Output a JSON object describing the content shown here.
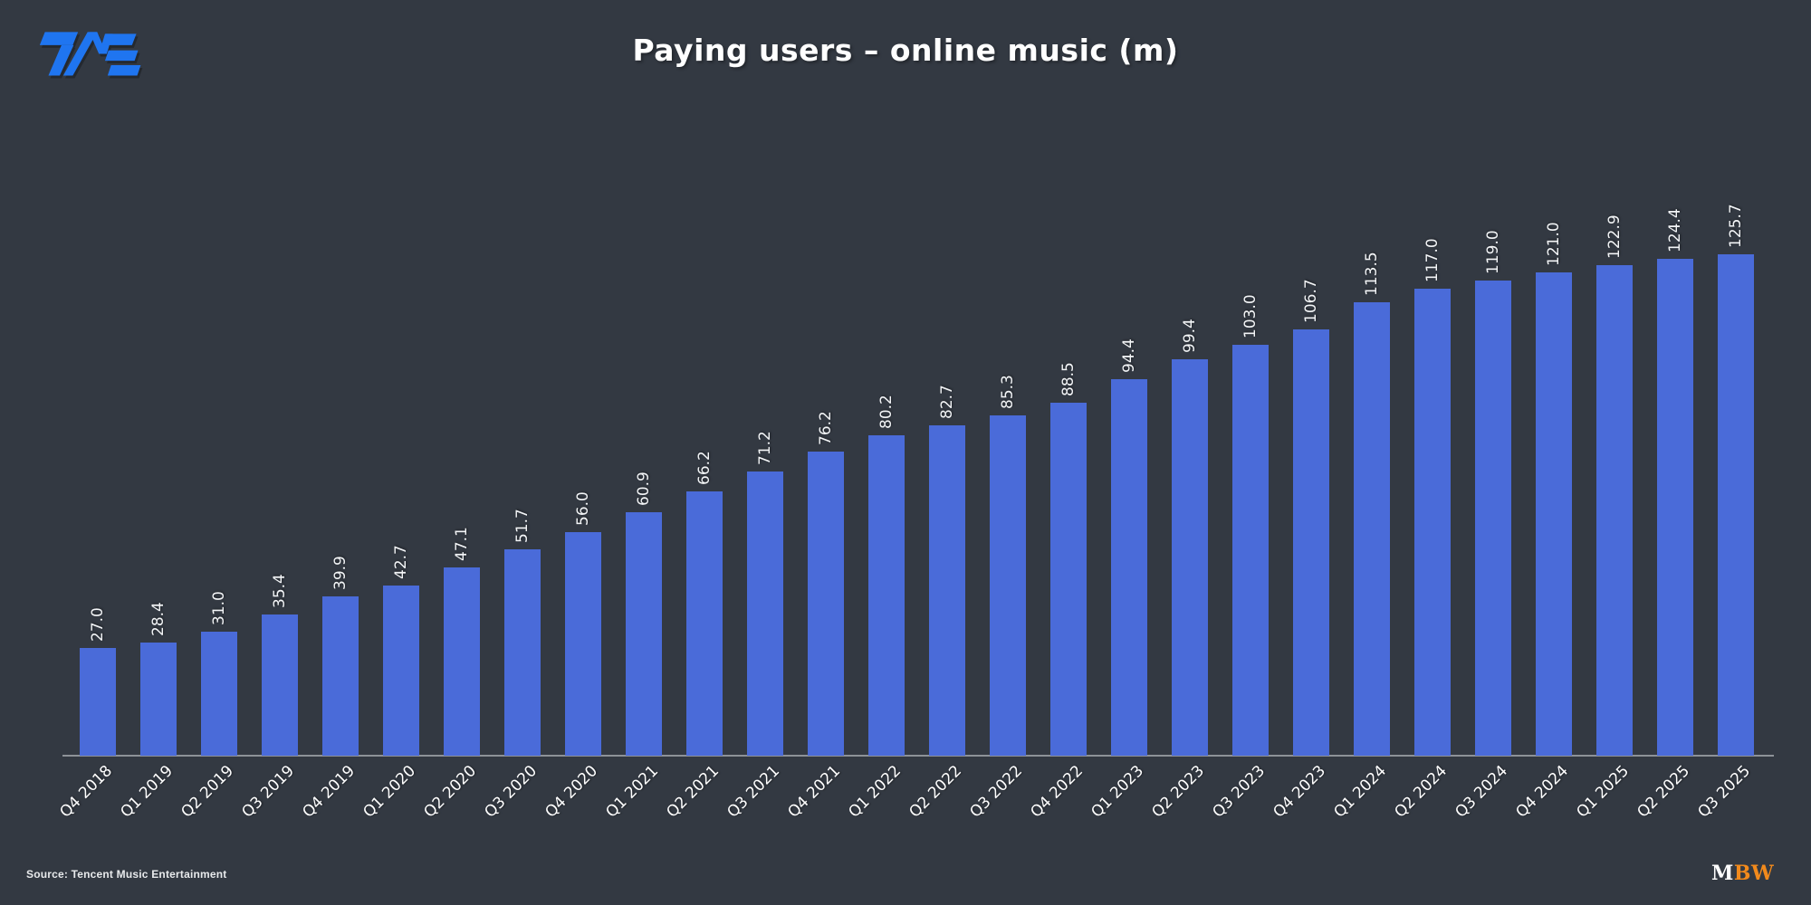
{
  "colors": {
    "background": "#333942",
    "bar": "#4a6bd9",
    "axis_line": "#8d9298",
    "title_text": "#ffffff",
    "value_label": "#f3f5f7",
    "category_label": "#ffffff",
    "source_text": "#e8eaec",
    "tme_logo_blue": "#1f75f0",
    "mbw_m": "#ffffff",
    "mbw_bw": "#f28a1c"
  },
  "chart_data": {
    "type": "bar",
    "title": "Paying users – online music (m)",
    "xlabel": "",
    "ylabel": "",
    "grid": false,
    "legend": false,
    "y_axis_visible": false,
    "categories": [
      "Q4 2018",
      "Q1 2019",
      "Q2 2019",
      "Q3 2019",
      "Q4 2019",
      "Q1 2020",
      "Q2 2020",
      "Q3 2020",
      "Q4 2020",
      "Q1 2021",
      "Q2 2021",
      "Q3 2021",
      "Q4 2021",
      "Q1 2022",
      "Q2 2022",
      "Q3 2022",
      "Q4 2022",
      "Q1 2023",
      "Q2 2023",
      "Q3 2023",
      "Q4 2023",
      "Q1 2024",
      "Q2 2024",
      "Q3 2024",
      "Q4 2024",
      "Q1 2025",
      "Q2 2025",
      "Q3 2025"
    ],
    "values": [
      27.0,
      28.4,
      31.0,
      35.4,
      39.9,
      42.7,
      47.1,
      51.7,
      56.0,
      60.9,
      66.2,
      71.2,
      76.2,
      80.2,
      82.7,
      85.3,
      88.5,
      94.4,
      99.4,
      103.0,
      106.7,
      113.5,
      117.0,
      119.0,
      121.0,
      122.9,
      124.4,
      125.7
    ],
    "value_labels": [
      "27.0",
      "28.4",
      "31.0",
      "35.4",
      "39.9",
      "42.7",
      "47.1",
      "51.7",
      "56.0",
      "60.9",
      "66.2",
      "71.2",
      "76.2",
      "80.2",
      "82.7",
      "85.3",
      "88.5",
      "94.4",
      "99.4",
      "103.0",
      "106.7",
      "113.5",
      "117.0",
      "119.0",
      "121.0",
      "122.9",
      "124.4",
      "125.7"
    ]
  },
  "footer": {
    "source": "Source: Tencent Music Entertainment",
    "mbw": {
      "m": "M",
      "bw": "BW"
    }
  }
}
